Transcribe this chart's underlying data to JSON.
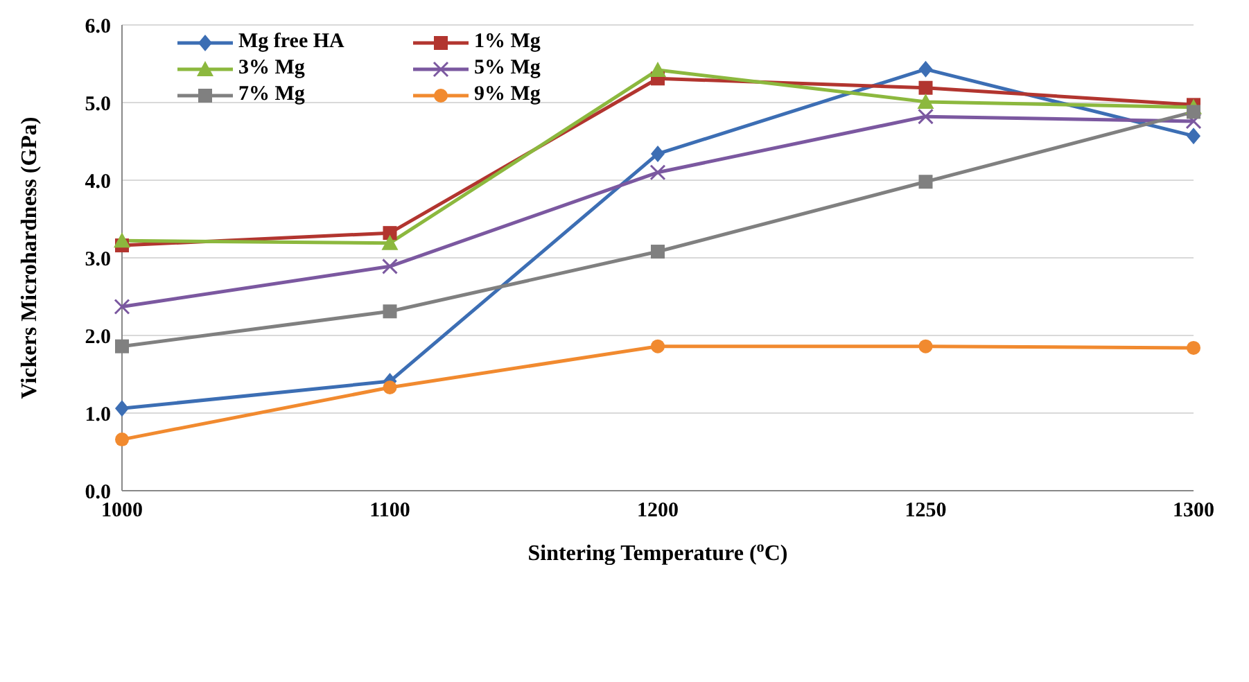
{
  "chart_data": {
    "type": "line",
    "xlabel": "Sintering Temperature ($^{o}$C)",
    "ylabel": "Vickers Microhardness (GPa)",
    "categories": [
      "1000",
      "1100",
      "1200",
      "1250",
      "1300"
    ],
    "series": [
      {
        "name": "Mg free HA",
        "color": "#3c6eb4",
        "marker": "diamond",
        "values": [
          1.06,
          1.41,
          4.34,
          5.43,
          4.57
        ]
      },
      {
        "name": "1% Mg",
        "color": "#b2352f",
        "marker": "square",
        "values": [
          3.16,
          3.32,
          5.31,
          5.19,
          4.97
        ]
      },
      {
        "name": "3% Mg",
        "color": "#8cb83e",
        "marker": "triangle",
        "values": [
          3.22,
          3.19,
          5.42,
          5.01,
          4.94
        ]
      },
      {
        "name": "5% Mg",
        "color": "#7b58a0",
        "marker": "cross",
        "values": [
          2.37,
          2.89,
          4.1,
          4.82,
          4.76
        ]
      },
      {
        "name": "7% Mg",
        "color": "#808080",
        "marker": "square",
        "values": [
          1.86,
          2.31,
          3.08,
          3.98,
          4.88
        ]
      },
      {
        "name": "9% Mg",
        "color": "#f18a2f",
        "marker": "circle",
        "values": [
          0.66,
          1.33,
          1.86,
          1.86,
          1.84
        ]
      }
    ],
    "ylim": [
      0,
      6
    ],
    "yticks": [
      {
        "value": 0,
        "label": "0.0"
      },
      {
        "value": 1,
        "label": "1.0"
      },
      {
        "value": 2,
        "label": "2.0"
      },
      {
        "value": 3,
        "label": "3.0"
      },
      {
        "value": 4,
        "label": "4.0"
      },
      {
        "value": 5,
        "label": "5.0"
      },
      {
        "value": 6,
        "label": "6.0"
      }
    ],
    "grid": "y",
    "legend": "top left"
  }
}
